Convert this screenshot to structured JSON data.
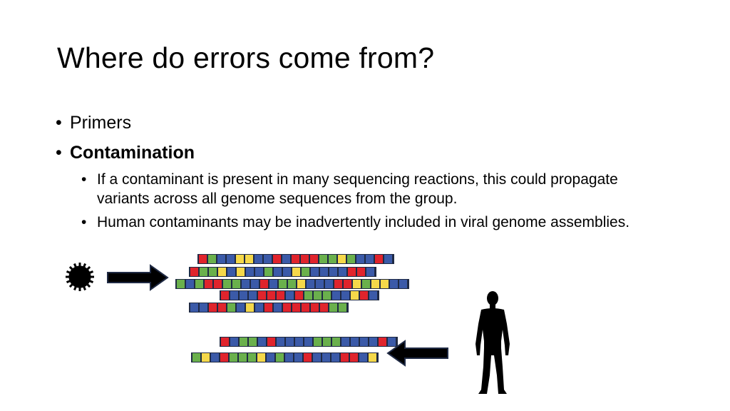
{
  "slide": {
    "title": "Where do errors come from?",
    "bullets": [
      {
        "text": "Primers",
        "bold": false
      },
      {
        "text": "Contamination",
        "bold": true
      }
    ],
    "sub_bullets": [
      {
        "text": "If a contaminant is present in many sequencing reactions, this could propagate variants across all genome sequences from the group."
      },
      {
        "text": "Human contaminants may be inadvertently included in viral genome assemblies."
      }
    ]
  },
  "figure": {
    "colors": {
      "R": "#e0242c",
      "G": "#6ab04c",
      "B": "#3b5aa8",
      "Y": "#f5d84a",
      "outline": "#1f2a44"
    },
    "icons": [
      "virus-icon",
      "arrow-right-icon",
      "arrow-left-icon",
      "human-silhouette-icon"
    ],
    "viral_reads": [
      "RGBBYYBBRBRRRGGYGBBRB",
      "RGGYBYBBGBBYGBBBBRRB",
      "GBGRRGGBBRBGGYBBBRRYGYYBB",
      "RBBBRRRBRGGGBBYRB",
      "BBRRGBYBRBRRRRRGG"
    ],
    "human_reads": [
      "RBGGBRBBBBGGGBBBBRB",
      "GYBRGGGYBGBBRBBBRRBY"
    ]
  }
}
